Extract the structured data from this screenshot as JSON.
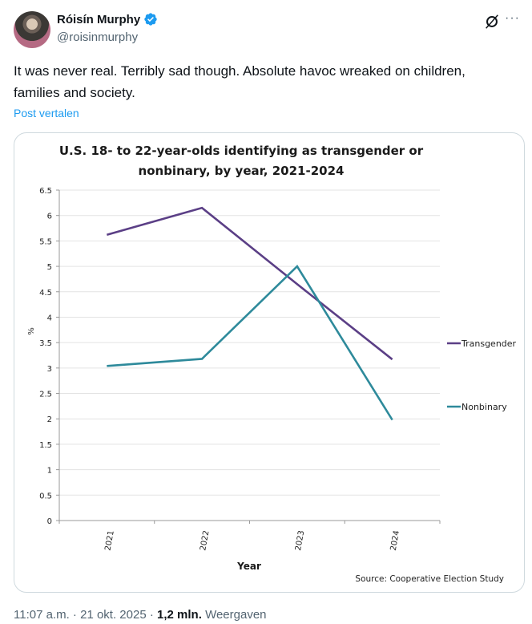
{
  "author": {
    "display_name": "Róisín Murphy",
    "handle": "@roisinmurphy",
    "verified": true,
    "avatar_icon": "profile-photo"
  },
  "actions": {
    "grok_icon": "grok-icon",
    "more_icon": "more-horizontal-icon",
    "more_label": "···"
  },
  "tweet": {
    "text": "It was never real. Terribly sad though. Absolute havoc wreaked on children, families and society.",
    "translate_label": "Post vertalen"
  },
  "meta": {
    "time": "11:07 a.m.",
    "separator": " · ",
    "date": "21 okt. 2025",
    "views_count": "1,2 mln.",
    "views_label": "Weergaven"
  },
  "colors": {
    "accent": "#1d9bf0",
    "transgender": "#5b3f86",
    "nonbinary": "#2e8a9b"
  },
  "chart_data": {
    "type": "line",
    "title": "U.S. 18- to 22-year-olds identifying as transgender or nonbinary, by year, 2021-2024",
    "title_lines": [
      "U.S. 18- to 22-year-olds identifying as transgender or",
      "nonbinary, by year, 2021-2024"
    ],
    "xlabel": "Year",
    "ylabel": "%",
    "categories": [
      "2021",
      "2022",
      "2023",
      "2024"
    ],
    "ylim": [
      0,
      6.5
    ],
    "yticks": [
      "0",
      "0.5",
      "1",
      "1.5",
      "2",
      "2.5",
      "3",
      "3.5",
      "4",
      "4.5",
      "5",
      "5.5",
      "6",
      "6.5"
    ],
    "ytick_values": [
      0,
      0.5,
      1,
      1.5,
      2,
      2.5,
      3,
      3.5,
      4,
      4.5,
      5,
      5.5,
      6,
      6.5
    ],
    "grid": true,
    "legend_position": "right",
    "series": [
      {
        "name": "Transgender",
        "values": [
          5.62,
          6.15,
          4.65,
          3.17
        ]
      },
      {
        "name": "Nonbinary",
        "values": [
          3.04,
          3.18,
          5.0,
          1.98
        ]
      }
    ],
    "source": "Source: Cooperative Election Study"
  }
}
